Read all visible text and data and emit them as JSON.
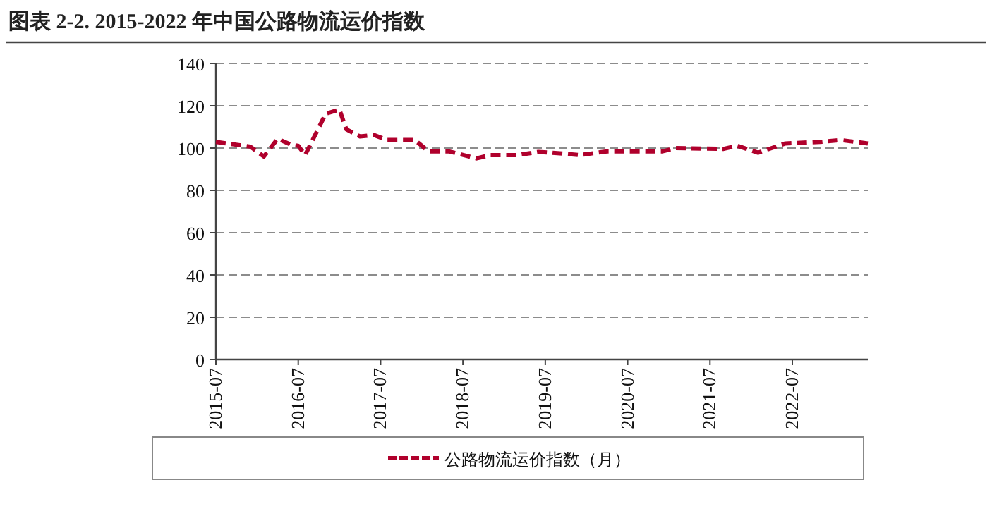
{
  "chart_data": {
    "type": "line",
    "title": "图表 2-2. 2015-2022 年中国公路物流运价指数",
    "x": [
      "2015-07",
      "2015-12",
      "2016-02",
      "2016-04",
      "2016-06",
      "2016-07",
      "2016-08",
      "2016-11",
      "2017-01",
      "2017-02",
      "2017-04",
      "2017-06",
      "2017-08",
      "2017-12",
      "2018-02",
      "2018-05",
      "2018-09",
      "2018-11",
      "2019-03",
      "2019-06",
      "2019-08",
      "2019-12",
      "2020-04",
      "2020-12",
      "2021-02",
      "2021-09",
      "2021-11",
      "2022-02",
      "2022-06",
      "2022-11",
      "2023-02",
      "2023-06"
    ],
    "series": [
      {
        "name": "公路物流运价指数（月）",
        "color": "#b0002c",
        "values": [
          102.9,
          100.7,
          96,
          104.4,
          101.5,
          101.1,
          96.7,
          116.2,
          118.2,
          108.9,
          105.5,
          106.2,
          103.8,
          103.8,
          98.4,
          98.4,
          95.1,
          96.7,
          96.7,
          98.2,
          97.8,
          96.7,
          98.4,
          98.4,
          100,
          99.6,
          101.1,
          97.8,
          102.2,
          102.9,
          103.8,
          102.2
        ]
      }
    ],
    "xlim": [
      "2015-07",
      "2023-06"
    ],
    "xticks": [
      "2015-07",
      "2016-07",
      "2017-07",
      "2018-07",
      "2019-07",
      "2020-07",
      "2021-07",
      "2022-07"
    ],
    "ylim": [
      0,
      140
    ],
    "yticks": [
      0,
      20,
      40,
      60,
      80,
      100,
      120,
      140
    ],
    "grid": "y",
    "legend": "bottom",
    "line_style": "dashed"
  }
}
